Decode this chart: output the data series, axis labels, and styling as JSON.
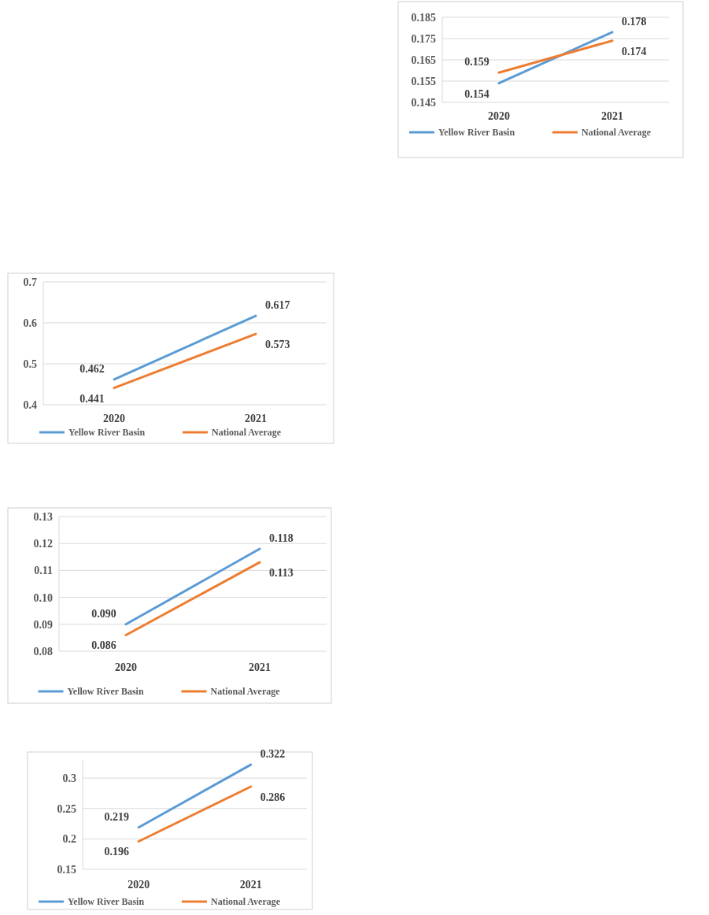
{
  "chart_data": [
    {
      "type": "line",
      "categories": [
        "2020",
        "2021"
      ],
      "series": [
        {
          "name": "Yellow River Basin",
          "color": "#5b9bd5",
          "values": [
            0.154,
            0.178
          ]
        },
        {
          "name": "National Average",
          "color": "#ed7d31",
          "values": [
            0.159,
            0.174
          ]
        }
      ],
      "ylim": [
        0.145,
        0.185
      ],
      "yticks": [
        {
          "value": 0.145,
          "label": "0.145"
        },
        {
          "value": 0.155,
          "label": "0.155"
        },
        {
          "value": 0.165,
          "label": "0.165"
        },
        {
          "value": 0.175,
          "label": "0.175"
        },
        {
          "value": 0.185,
          "label": "0.185"
        }
      ],
      "grid": "y",
      "legend": "bottom",
      "data_labels": true,
      "marker": "none",
      "line_style": "solid"
    },
    {
      "type": "line",
      "categories": [
        "2020",
        "2021"
      ],
      "series": [
        {
          "name": "Yellow River Basin",
          "color": "#5b9bd5",
          "values": [
            0.462,
            0.617
          ]
        },
        {
          "name": "National Average",
          "color": "#ed7d31",
          "values": [
            0.441,
            0.573
          ]
        }
      ],
      "ylim": [
        0.4,
        0.7
      ],
      "yticks": [
        0.4,
        0.5,
        0.6,
        0.7
      ],
      "grid": "y",
      "legend": "bottom",
      "data_labels": true,
      "marker": "none",
      "line_style": "solid"
    },
    {
      "type": "line",
      "categories": [
        "2020",
        "2021"
      ],
      "series": [
        {
          "name": "Yellow River Basin",
          "color": "#5b9bd5",
          "values": [
            0.09,
            0.118
          ],
          "value_labels": [
            "0.090",
            "0.118"
          ]
        },
        {
          "name": "National Average",
          "color": "#ed7d31",
          "values": [
            0.086,
            0.113
          ],
          "value_labels": [
            "0.086",
            "0.113"
          ]
        }
      ],
      "ylim": [
        0.08,
        0.13
      ],
      "yticks": [
        {
          "value": 0.08,
          "label": "0.08"
        },
        {
          "value": 0.09,
          "label": "0.09"
        },
        {
          "value": 0.1,
          "label": "0.10"
        },
        {
          "value": 0.11,
          "label": "0.11"
        },
        {
          "value": 0.12,
          "label": "0.12"
        },
        {
          "value": 0.13,
          "label": "0.13"
        }
      ],
      "grid": "y",
      "legend": "bottom",
      "marker": "none",
      "line_style": "solid"
    },
    {
      "type": "line",
      "categories": [
        "2020",
        "2021"
      ],
      "series": [
        {
          "name": "Yellow River Basin",
          "color": "#5b9bd5",
          "values": [
            0.219,
            0.322
          ]
        },
        {
          "name": "National Average",
          "color": "#ed7d31",
          "values": [
            0.196,
            0.286
          ]
        }
      ],
      "ylim": [
        0.15,
        0.33
      ],
      "yticks": [
        0.15,
        0.2,
        0.25,
        0.3
      ],
      "grid": "y",
      "legend": "bottom",
      "data_labels": true,
      "marker": "none",
      "line_style": "solid"
    }
  ]
}
